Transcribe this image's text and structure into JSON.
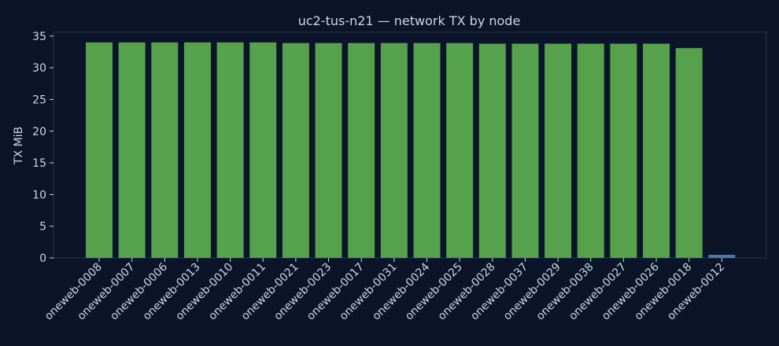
{
  "chart_data": {
    "type": "bar",
    "title": "uc2-tus-n21 — network TX by node",
    "xlabel": "",
    "ylabel": "TX MiB",
    "ylim": [
      0,
      35.6
    ],
    "yticks": [
      0,
      5,
      10,
      15,
      20,
      25,
      30,
      35
    ],
    "grid": false,
    "categories": [
      "oneweb-0008",
      "oneweb-0007",
      "oneweb-0006",
      "oneweb-0013",
      "oneweb-0010",
      "oneweb-0011",
      "oneweb-0021",
      "oneweb-0023",
      "oneweb-0017",
      "oneweb-0031",
      "oneweb-0024",
      "oneweb-0025",
      "oneweb-0028",
      "oneweb-0037",
      "oneweb-0029",
      "oneweb-0038",
      "oneweb-0027",
      "oneweb-0026",
      "oneweb-0018",
      "oneweb-0012"
    ],
    "values": [
      34.0,
      34.0,
      34.0,
      34.0,
      34.0,
      34.0,
      33.9,
      33.9,
      33.9,
      33.9,
      33.9,
      33.9,
      33.8,
      33.8,
      33.8,
      33.8,
      33.8,
      33.8,
      33.1,
      0.5
    ],
    "bar_colors": [
      "#55a14c",
      "#55a14c",
      "#55a14c",
      "#55a14c",
      "#55a14c",
      "#55a14c",
      "#55a14c",
      "#55a14c",
      "#55a14c",
      "#55a14c",
      "#55a14c",
      "#55a14c",
      "#55a14c",
      "#55a14c",
      "#55a14c",
      "#55a14c",
      "#55a14c",
      "#55a14c",
      "#55a14c",
      "#4c78a8"
    ]
  }
}
